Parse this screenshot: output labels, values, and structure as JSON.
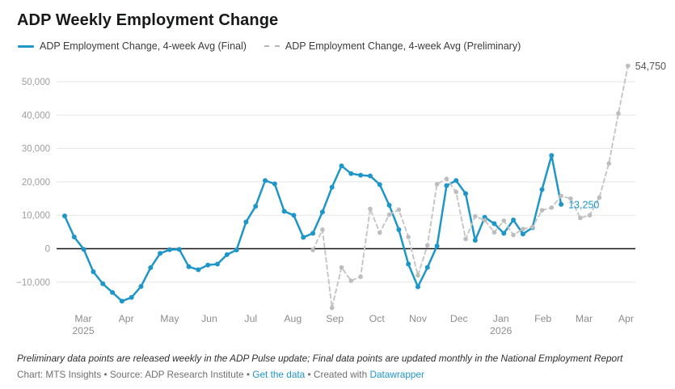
{
  "title": "ADP Weekly Employment Change",
  "legend": [
    {
      "label": "ADP Employment Change, 4-week Avg (Final)",
      "style": "solid-blue"
    },
    {
      "label": "ADP Employment Change, 4-week Avg (Preliminary)",
      "style": "dashed-gray"
    }
  ],
  "colors": {
    "final_line": "#1e96c8",
    "preliminary_line": "#c7c7c7",
    "preliminary_marker": "#bdbdbd",
    "grid_line": "#e5e5e5",
    "zero_line": "#161616",
    "axis_label": "#9d9d9d",
    "month_label": "#8c8c8c",
    "annotation_final": "#1e96c8",
    "annotation_preliminary": "#555555"
  },
  "chart_data": {
    "type": "line",
    "title": "ADP Weekly Employment Change",
    "x_unit": "weeks (Mar 2025 - Apr 2026)",
    "grid": "horizontal",
    "legend_position": "top",
    "ylim": [
      -18000,
      56000
    ],
    "y_axis": {
      "ticks": [
        50000,
        40000,
        30000,
        20000,
        10000,
        0,
        -10000
      ]
    },
    "x_axis": {
      "months": [
        {
          "label": "Mar",
          "sublabel": "2025",
          "week": 1.95
        },
        {
          "label": "Apr",
          "sublabel": "",
          "week": 6.45
        },
        {
          "label": "May",
          "sublabel": "",
          "week": 11.0
        },
        {
          "label": "Jun",
          "sublabel": "",
          "week": 15.15
        },
        {
          "label": "Jul",
          "sublabel": "",
          "week": 19.5
        },
        {
          "label": "Aug",
          "sublabel": "",
          "week": 23.9
        },
        {
          "label": "Sep",
          "sublabel": "",
          "week": 28.3
        },
        {
          "label": "Oct",
          "sublabel": "",
          "week": 32.7
        },
        {
          "label": "Nov",
          "sublabel": "",
          "week": 37.0
        },
        {
          "label": "Dec",
          "sublabel": "",
          "week": 41.3
        },
        {
          "label": "Jan",
          "sublabel": "2026",
          "week": 45.7
        },
        {
          "label": "Feb",
          "sublabel": "",
          "week": 50.1
        },
        {
          "label": "Mar",
          "sublabel": "",
          "week": 54.4
        },
        {
          "label": "Apr",
          "sublabel": "",
          "week": 58.8
        }
      ]
    },
    "series": [
      {
        "name": "ADP Employment Change, 4-week Avg (Final)",
        "style": "solid",
        "start_week": 0,
        "values": [
          9800,
          3500,
          -200,
          -6900,
          -10500,
          -13100,
          -15700,
          -14600,
          -11300,
          -5700,
          -1400,
          -300,
          -200,
          -5400,
          -6300,
          -4900,
          -4600,
          -1800,
          -400,
          8000,
          12700,
          20400,
          19400,
          11200,
          10000,
          3400,
          4600,
          11000,
          18400,
          24800,
          22500,
          22000,
          21800,
          19200,
          13000,
          5700,
          -4600,
          -11400,
          -5600,
          800,
          18900,
          20400,
          16500,
          2500,
          9400,
          7500,
          4600,
          8600,
          4400,
          6300,
          17700,
          27900,
          13250
        ]
      },
      {
        "name": "ADP Employment Change, 4-week Avg (Preliminary)",
        "style": "dashed",
        "start_week": 26,
        "values": [
          -400,
          5700,
          -17700,
          -5600,
          -9600,
          -8400,
          11900,
          4800,
          10200,
          11700,
          3500,
          -8000,
          1000,
          19300,
          20900,
          17000,
          2900,
          9700,
          8500,
          4900,
          8400,
          4100,
          5900,
          6500,
          11500,
          12300,
          15800,
          15000,
          9200,
          10000,
          15300,
          25500,
          40500,
          54750
        ]
      }
    ],
    "annotations": [
      {
        "text": "13,250",
        "week": 52,
        "value": 13250,
        "series": "final"
      },
      {
        "text": "54,750",
        "week": 59,
        "value": 54750,
        "series": "preliminary"
      }
    ]
  },
  "footer": {
    "note": "Preliminary data points are released weekly in the ADP Pulse update; Final data points are updated monthly in the National Employment Report",
    "credit_parts": [
      {
        "text": "Chart: MTS Insights • Source: ADP Research Institute • ",
        "link": false
      },
      {
        "text": "Get the data",
        "link": true
      },
      {
        "text": " • Created with ",
        "link": false
      },
      {
        "text": "Datawrapper",
        "link": true
      }
    ]
  }
}
